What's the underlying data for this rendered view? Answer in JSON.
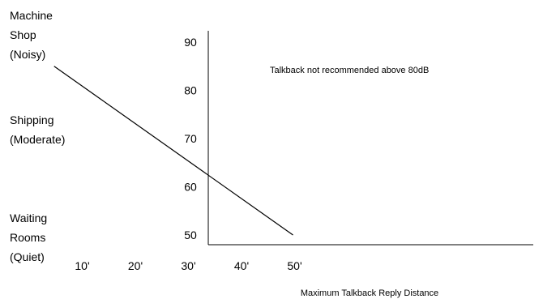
{
  "chart_data": {
    "type": "line",
    "title": "",
    "xlabel": "Maximum Talkback Reply Distance",
    "ylabel": "",
    "x_ticks": [
      "10'",
      "20'",
      "30'",
      "40'",
      "50'"
    ],
    "x_tick_values": [
      10,
      20,
      30,
      40,
      50
    ],
    "y_ticks": [
      "90",
      "80",
      "70",
      "60",
      "50"
    ],
    "y_tick_values": [
      90,
      80,
      70,
      60,
      50
    ],
    "xlim": [
      3,
      52
    ],
    "ylim": [
      47,
      92
    ],
    "series": [
      {
        "x": [
          5,
          50
        ],
        "y": [
          85,
          50
        ],
        "color": "#000000"
      }
    ],
    "annotations": [
      {
        "text": "Talkback not recommended above 80dB",
        "x": 13,
        "y": 85
      }
    ],
    "environment_labels": [
      {
        "name": "machine-shop",
        "lines": [
          "Machine",
          "Shop",
          "(Noisy)"
        ]
      },
      {
        "name": "shipping",
        "lines": [
          "Shipping",
          "(Moderate)"
        ]
      },
      {
        "name": "waiting-rooms",
        "lines": [
          "Waiting",
          "Rooms",
          "(Quiet)"
        ]
      }
    ],
    "grid": false,
    "legend": "none",
    "colors": {
      "line": "#000000",
      "axis": "#000000",
      "background": "#ffffff"
    }
  }
}
